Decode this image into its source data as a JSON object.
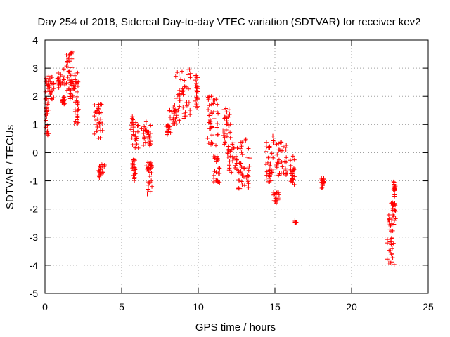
{
  "chart_data": {
    "type": "scatter",
    "title": "Day 254 of 2018, Sidereal Day-to-day VTEC variation (SDTVAR) for receiver kev2",
    "xlabel": "GPS time / hours",
    "ylabel": "SDTVAR / TECUs",
    "xlim": [
      0,
      25
    ],
    "ylim": [
      -5,
      4
    ],
    "xticks": [
      0,
      5,
      10,
      15,
      20,
      25
    ],
    "yticks": [
      -5,
      -4,
      -3,
      -2,
      -1,
      0,
      1,
      2,
      3,
      4
    ],
    "grid": true,
    "marker": "+",
    "color": "#ff0000",
    "series": [
      {
        "name": "SDTVAR",
        "clusters": [
          {
            "x": [
              0.0,
              0.25
            ],
            "y": [
              0.6,
              2.8
            ]
          },
          {
            "x": [
              0.3,
              0.6
            ],
            "y": [
              1.9,
              2.7
            ]
          },
          {
            "x": [
              0.8,
              1.3
            ],
            "y": [
              2.3,
              3.0
            ]
          },
          {
            "x": [
              1.1,
              1.3
            ],
            "y": [
              1.7,
              2.0
            ]
          },
          {
            "x": [
              1.4,
              1.8
            ],
            "y": [
              2.2,
              3.6
            ]
          },
          {
            "x": [
              1.6,
              1.9
            ],
            "y": [
              1.9,
              2.5
            ]
          },
          {
            "x": [
              1.9,
              2.2
            ],
            "y": [
              1.0,
              3.1
            ]
          },
          {
            "x": [
              3.2,
              3.8
            ],
            "y": [
              0.5,
              1.8
            ]
          },
          {
            "x": [
              3.5,
              3.9
            ],
            "y": [
              -0.9,
              -0.4
            ]
          },
          {
            "x": [
              5.6,
              6.1
            ],
            "y": [
              0.1,
              1.3
            ]
          },
          {
            "x": [
              5.7,
              5.9
            ],
            "y": [
              -1.0,
              -0.2
            ]
          },
          {
            "x": [
              6.3,
              6.9
            ],
            "y": [
              0.2,
              1.1
            ]
          },
          {
            "x": [
              6.6,
              7.0
            ],
            "y": [
              -1.5,
              -0.2
            ]
          },
          {
            "x": [
              7.9,
              8.2
            ],
            "y": [
              0.6,
              1.0
            ]
          },
          {
            "x": [
              8.1,
              8.6
            ],
            "y": [
              1.0,
              1.7
            ]
          },
          {
            "x": [
              8.5,
              9.5
            ],
            "y": [
              1.1,
              3.0
            ]
          },
          {
            "x": [
              9.8,
              10.0
            ],
            "y": [
              1.5,
              2.8
            ]
          },
          {
            "x": [
              10.6,
              11.3
            ],
            "y": [
              0.2,
              2.0
            ]
          },
          {
            "x": [
              11.0,
              11.4
            ],
            "y": [
              -1.1,
              -0.1
            ]
          },
          {
            "x": [
              11.6,
              12.1
            ],
            "y": [
              0.3,
              1.6
            ]
          },
          {
            "x": [
              11.9,
              12.6
            ],
            "y": [
              -0.7,
              0.4
            ]
          },
          {
            "x": [
              12.6,
              13.4
            ],
            "y": [
              -1.3,
              0.5
            ]
          },
          {
            "x": [
              14.4,
              14.9
            ],
            "y": [
              -1.1,
              0.6
            ]
          },
          {
            "x": [
              14.9,
              15.3
            ],
            "y": [
              -1.8,
              -1.4
            ]
          },
          {
            "x": [
              15.1,
              15.8
            ],
            "y": [
              -0.8,
              0.4
            ]
          },
          {
            "x": [
              16.0,
              16.3
            ],
            "y": [
              -1.3,
              -0.1
            ]
          },
          {
            "x": [
              16.3,
              16.4
            ],
            "y": [
              -2.5,
              -2.4
            ]
          },
          {
            "x": [
              18.0,
              18.2
            ],
            "y": [
              -1.3,
              -0.9
            ]
          },
          {
            "x": [
              22.3,
              22.8
            ],
            "y": [
              -4.1,
              -1.6
            ]
          },
          {
            "x": [
              22.7,
              22.9
            ],
            "y": [
              -2.4,
              -1.0
            ]
          }
        ]
      }
    ]
  }
}
